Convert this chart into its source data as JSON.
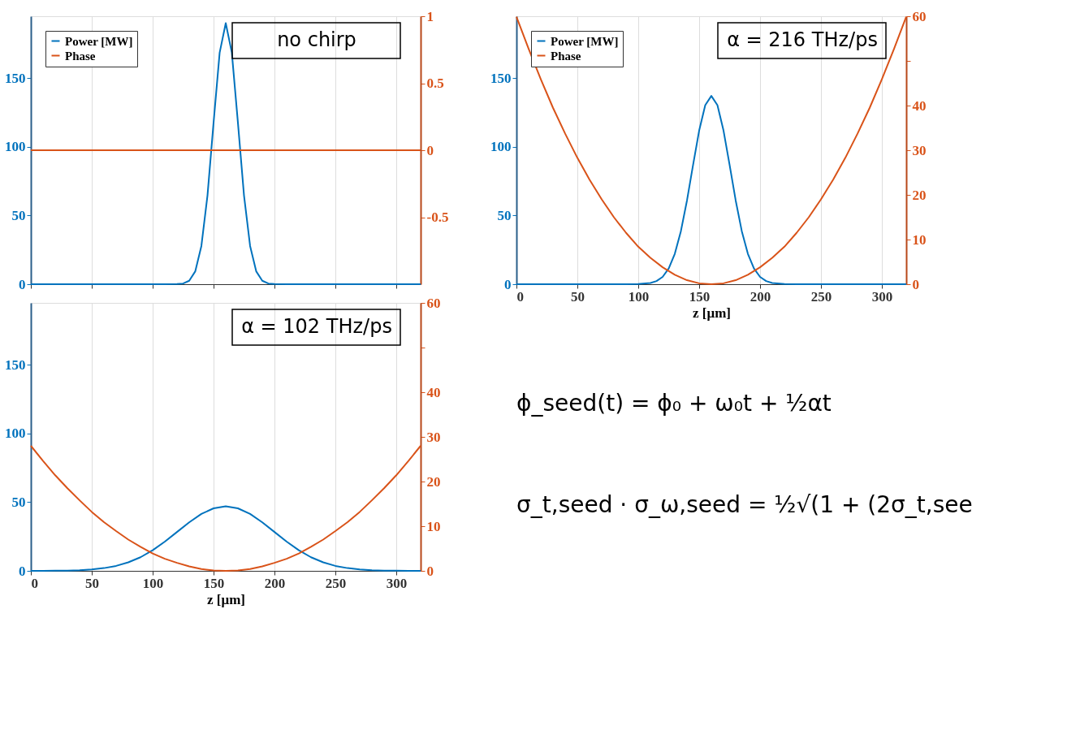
{
  "chart_data": [
    {
      "type": "line",
      "xlim": [
        0,
        320
      ],
      "xticks": [
        0,
        50,
        100,
        150,
        200,
        250,
        300
      ],
      "ylim": [
        0,
        195
      ],
      "yticks": [
        0,
        50,
        100,
        150
      ],
      "y2lim": [
        -1,
        1
      ],
      "y2ticks": [
        -0.5,
        0,
        0.5,
        1
      ],
      "grid": "x",
      "legend": "top left",
      "tick_labels": "y",
      "annotations": [
        "no chirp"
      ],
      "series": [
        {
          "name": "Power [MW]",
          "color": "#0072bd",
          "x": [
            0,
            100,
            110,
            120,
            125,
            130,
            135,
            140,
            145,
            150,
            155,
            160,
            165,
            170,
            175,
            180,
            185,
            190,
            195,
            200,
            210,
            220,
            320
          ],
          "values": [
            0,
            0,
            0,
            0.1,
            0.5,
            2.5,
            9.4,
            27.8,
            64.5,
            117.5,
            168.5,
            190,
            168.5,
            117.5,
            64.5,
            27.8,
            9.4,
            2.5,
            0.5,
            0.1,
            0,
            0,
            0
          ]
        },
        {
          "name": "Phase",
          "color": "#d95319",
          "axis": "y2",
          "x": [
            0,
            320
          ],
          "values": [
            0,
            0
          ]
        }
      ]
    },
    {
      "type": "line",
      "xlabel": "z [μm]",
      "xlim": [
        0,
        320
      ],
      "xticks": [
        0,
        50,
        100,
        150,
        200,
        250,
        300
      ],
      "ylim": [
        0,
        195
      ],
      "yticks": [
        0,
        50,
        100,
        150
      ],
      "y2lim": [
        0,
        60
      ],
      "y2ticks": [
        0,
        10,
        20,
        30,
        40,
        {
          "value": 50,
          "label": null
        },
        60
      ],
      "grid": "x",
      "legend": "top left",
      "annotations": [
        "α = 216 THz/ps",
        "ϕ_seed(t) = ϕ₀ + ω₀t + ½αt",
        "σ_t,seed · σ_ω,seed = ½√(1 + (2σ_t,see"
      ],
      "series": [
        {
          "name": "Power [MW]",
          "color": "#0072bd",
          "x": [
            0,
            90,
            100,
            110,
            115,
            120,
            125,
            130,
            135,
            140,
            145,
            150,
            155,
            160,
            165,
            170,
            175,
            180,
            185,
            190,
            195,
            200,
            205,
            210,
            220,
            230,
            320
          ],
          "values": [
            0,
            0,
            0.1,
            0.9,
            2.3,
            5.3,
            11.4,
            22.1,
            38.6,
            60.9,
            86.8,
            111.8,
            130.3,
            137,
            130.3,
            111.8,
            86.8,
            60.9,
            38.6,
            22.1,
            11.4,
            5.3,
            2.3,
            0.9,
            0.1,
            0,
            0
          ]
        },
        {
          "name": "Phase",
          "color": "#d95319",
          "axis": "y2",
          "x": [
            0,
            10,
            20,
            30,
            40,
            50,
            60,
            70,
            80,
            90,
            100,
            110,
            120,
            130,
            140,
            150,
            160,
            170,
            180,
            190,
            200,
            210,
            220,
            230,
            240,
            250,
            260,
            270,
            280,
            290,
            300,
            310,
            320
          ],
          "values": [
            59.9,
            52.7,
            45.9,
            39.5,
            33.7,
            28.3,
            23.4,
            19.0,
            15.0,
            11.5,
            8.4,
            5.9,
            3.8,
            2.1,
            0.9,
            0.2,
            0,
            0.2,
            0.9,
            2.1,
            3.8,
            5.9,
            8.4,
            11.5,
            15.0,
            19.0,
            23.4,
            28.3,
            33.7,
            39.5,
            45.9,
            52.7,
            59.9
          ]
        }
      ]
    },
    {
      "type": "line",
      "xlabel": "z [μm]",
      "xlim": [
        0,
        320
      ],
      "xticks": [
        0,
        50,
        100,
        150,
        200,
        250,
        300
      ],
      "ylim": [
        0,
        195
      ],
      "yticks": [
        0,
        50,
        100,
        150
      ],
      "y2lim": [
        0,
        60
      ],
      "y2ticks": [
        0,
        10,
        20,
        30,
        40,
        {
          "value": 50,
          "label": null
        },
        60
      ],
      "grid": "x",
      "legend": "top left",
      "annotations": [
        "α = 102 THz/ps"
      ],
      "series": [
        {
          "name": "Power [MW]",
          "color": "#0072bd",
          "x": [
            0,
            10,
            20,
            30,
            40,
            50,
            60,
            70,
            80,
            90,
            100,
            110,
            120,
            130,
            140,
            150,
            160,
            170,
            180,
            190,
            200,
            210,
            220,
            230,
            240,
            250,
            260,
            270,
            280,
            290,
            300,
            310,
            320
          ],
          "values": [
            0,
            0,
            0.1,
            0.2,
            0.5,
            1.0,
            2.0,
            3.6,
            6.2,
            9.9,
            15.0,
            21.3,
            28.3,
            35.3,
            41.4,
            45.5,
            47,
            45.5,
            41.4,
            35.3,
            28.3,
            21.3,
            15.0,
            9.9,
            6.2,
            3.6,
            2.0,
            1.0,
            0.5,
            0.2,
            0.1,
            0,
            0
          ]
        },
        {
          "name": "Phase",
          "color": "#d95319",
          "axis": "y2",
          "x": [
            0,
            10,
            20,
            30,
            40,
            50,
            60,
            70,
            80,
            90,
            100,
            110,
            120,
            130,
            140,
            150,
            160,
            170,
            180,
            190,
            200,
            210,
            220,
            230,
            240,
            250,
            260,
            270,
            280,
            290,
            300,
            310,
            320
          ],
          "values": [
            28.0,
            24.6,
            21.4,
            18.5,
            15.8,
            13.2,
            10.9,
            8.9,
            7.0,
            5.4,
            3.9,
            2.7,
            1.8,
            1.0,
            0.4,
            0.1,
            0,
            0.1,
            0.4,
            1.0,
            1.8,
            2.7,
            3.9,
            5.4,
            7.0,
            8.9,
            10.9,
            13.2,
            15.8,
            18.5,
            21.4,
            24.6,
            28.0
          ]
        }
      ]
    }
  ]
}
